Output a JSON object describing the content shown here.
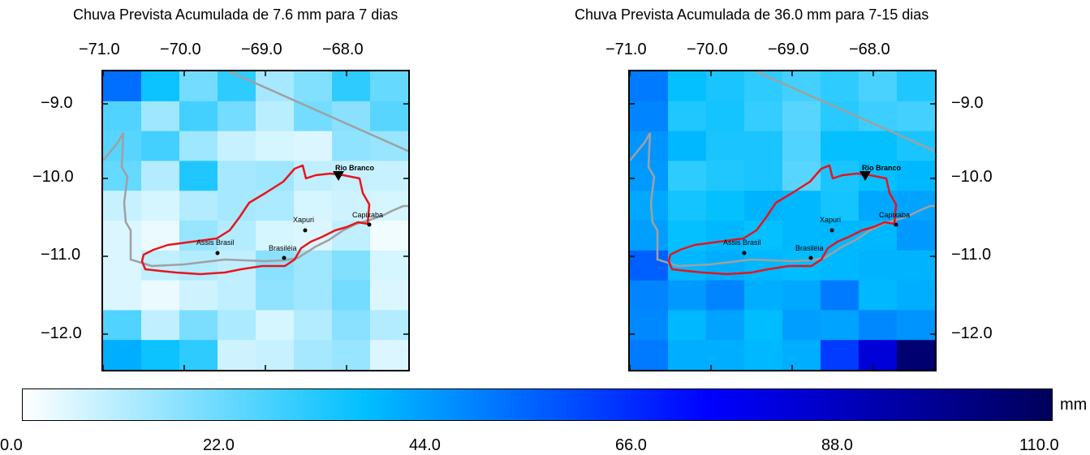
{
  "panels": [
    {
      "title": "Chuva Prevista Acumulada de 7.6 mm para 7 dias",
      "lon_ticks": [
        "−71.0",
        "−70.0",
        "−69.0",
        "−68.0"
      ],
      "lat_ticks": [
        "−9.0",
        "−10.0",
        "−11.0",
        "−12.0"
      ],
      "lat_label_side": "left",
      "grid": [
        [
          52,
          35,
          20,
          30,
          13,
          18,
          30,
          22
        ],
        [
          25,
          14,
          27,
          20,
          10,
          20,
          17,
          24
        ],
        [
          24,
          27,
          14,
          8,
          6,
          5,
          16,
          15
        ],
        [
          22,
          11,
          32,
          13,
          14,
          9,
          8,
          8
        ],
        [
          8,
          6,
          11,
          13,
          12,
          6,
          7,
          6
        ],
        [
          5,
          3,
          15,
          11,
          6,
          5,
          9,
          2
        ],
        [
          5,
          9,
          11,
          9,
          17,
          14,
          18,
          6
        ],
        [
          5,
          3,
          7,
          9,
          16,
          14,
          20,
          5
        ],
        [
          25,
          9,
          19,
          12,
          6,
          11,
          17,
          11
        ],
        [
          40,
          35,
          30,
          7,
          8,
          13,
          15,
          5
        ]
      ]
    },
    {
      "title": "Chuva Prevista Acumulada de 36.0 mm para 7-15 dias",
      "lon_ticks": [
        "−71.0",
        "−70.0",
        "−69.0",
        "−68.0"
      ],
      "lat_ticks": [
        "−9.0",
        "−10.0",
        "−11.0",
        "−12.0"
      ],
      "lat_label_side": "right",
      "grid": [
        [
          50,
          36,
          33,
          30,
          27,
          30,
          26,
          32
        ],
        [
          48,
          32,
          34,
          29,
          24,
          31,
          28,
          27
        ],
        [
          45,
          38,
          33,
          33,
          25,
          36,
          36,
          33
        ],
        [
          44,
          30,
          32,
          33,
          24,
          33,
          36,
          38
        ],
        [
          41,
          34,
          36,
          39,
          38,
          34,
          41,
          42
        ],
        [
          43,
          36,
          38,
          36,
          38,
          38,
          38,
          44
        ],
        [
          55,
          38,
          40,
          38,
          37,
          38,
          39,
          39
        ],
        [
          48,
          44,
          48,
          40,
          41,
          50,
          38,
          40
        ],
        [
          47,
          38,
          42,
          37,
          43,
          42,
          47,
          45
        ],
        [
          50,
          40,
          40,
          38,
          40,
          62,
          82,
          105
        ]
      ]
    }
  ],
  "places": [
    {
      "name": "Rio Branco",
      "marker": "triangle-down",
      "bold": true
    },
    {
      "name": "Capixaba",
      "marker": "dot"
    },
    {
      "name": "Xapuri",
      "marker": "dot"
    },
    {
      "name": "Assis Brasil",
      "marker": "dot"
    },
    {
      "name": "Brasiléia",
      "marker": "dot"
    }
  ],
  "colorbar": {
    "ticks": [
      "0.0",
      "22.0",
      "44.0",
      "66.0",
      "88.0",
      "110.0"
    ],
    "min": 0,
    "max": 110,
    "unit": "mm",
    "colors": [
      "#ffffff",
      "#00bfff",
      "#0000ff",
      "#00005a"
    ]
  },
  "colors": {
    "basin_outline": "#e8141c",
    "border_line": "#a0a0a0"
  }
}
